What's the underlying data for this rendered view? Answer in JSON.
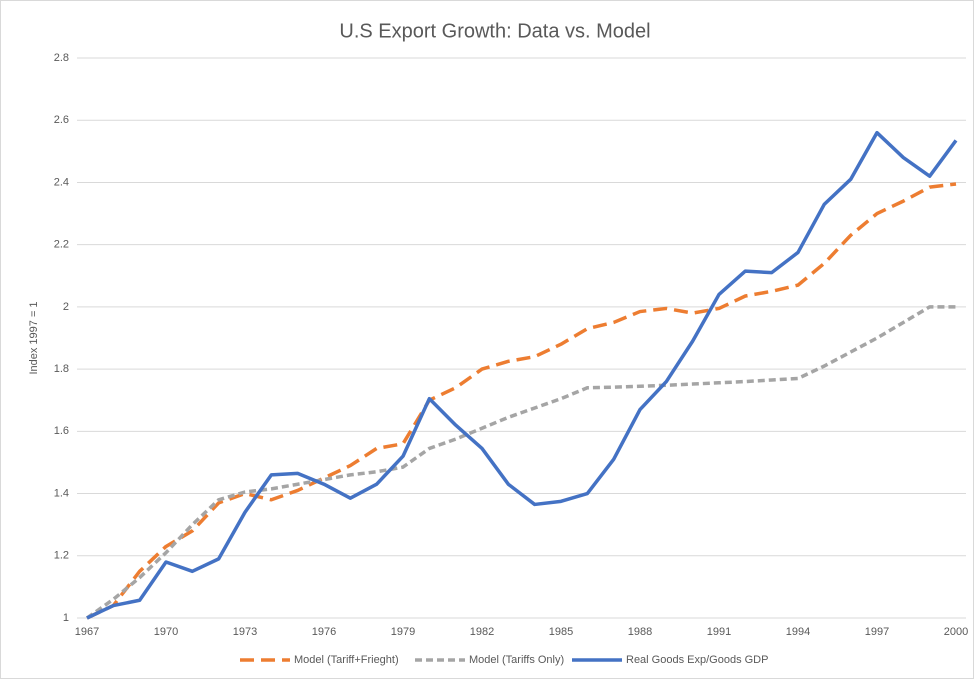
{
  "chart_data": {
    "type": "line",
    "title": "U.S Export Growth: Data vs. Model",
    "y_label": "Index 1997 = 1",
    "x": [
      1967,
      1968,
      1969,
      1970,
      1971,
      1972,
      1973,
      1974,
      1975,
      1976,
      1977,
      1978,
      1979,
      1980,
      1981,
      1982,
      1983,
      1984,
      1985,
      1986,
      1987,
      1988,
      1989,
      1990,
      1991,
      1992,
      1993,
      1994,
      1995,
      1996,
      1997,
      1998,
      1999,
      2000
    ],
    "xlim": [
      1967,
      2000
    ],
    "xticks": [
      1967,
      1970,
      1973,
      1976,
      1979,
      1982,
      1985,
      1988,
      1991,
      1994,
      1997,
      2000
    ],
    "ylim": [
      1,
      2.8
    ],
    "yticks": [
      1,
      1.2,
      1.4,
      1.6,
      1.8,
      2,
      2.2,
      2.4,
      2.6,
      2.8
    ],
    "grid": true,
    "legend": "bottom",
    "series": [
      {
        "name": "Model (Tariff+Frieght)",
        "color": "#ed7d31",
        "line_style": "long-dash",
        "values": [
          1.0,
          1.04,
          1.15,
          1.23,
          1.28,
          1.37,
          1.4,
          1.38,
          1.41,
          1.45,
          1.49,
          1.545,
          1.56,
          1.7,
          1.74,
          1.8,
          1.825,
          1.84,
          1.88,
          1.93,
          1.95,
          1.985,
          1.995,
          1.98,
          1.995,
          2.035,
          2.05,
          2.07,
          2.14,
          2.23,
          2.3,
          2.34,
          2.385,
          2.395
        ]
      },
      {
        "name": "Model (Tariffs Only)",
        "color": "#a5a5a5",
        "line_style": "short-dash",
        "values": [
          1.0,
          1.06,
          1.13,
          1.21,
          1.3,
          1.38,
          1.405,
          1.415,
          1.43,
          1.445,
          1.46,
          1.47,
          1.485,
          1.545,
          1.575,
          1.61,
          1.645,
          1.675,
          1.705,
          1.74,
          1.742,
          1.745,
          1.748,
          1.752,
          1.756,
          1.76,
          1.765,
          1.77,
          1.81,
          1.855,
          1.9,
          1.95,
          2.0,
          2.0
        ]
      },
      {
        "name": "Real Goods Exp/Goods GDP",
        "color": "#4472c4",
        "line_style": "solid",
        "values": [
          1.0,
          1.04,
          1.057,
          1.18,
          1.15,
          1.19,
          1.34,
          1.46,
          1.465,
          1.43,
          1.385,
          1.43,
          1.52,
          1.705,
          1.62,
          1.545,
          1.43,
          1.365,
          1.375,
          1.4,
          1.51,
          1.67,
          1.76,
          1.89,
          2.04,
          2.115,
          2.11,
          2.175,
          2.33,
          2.41,
          2.56,
          2.48,
          2.42,
          2.535
        ]
      }
    ]
  }
}
